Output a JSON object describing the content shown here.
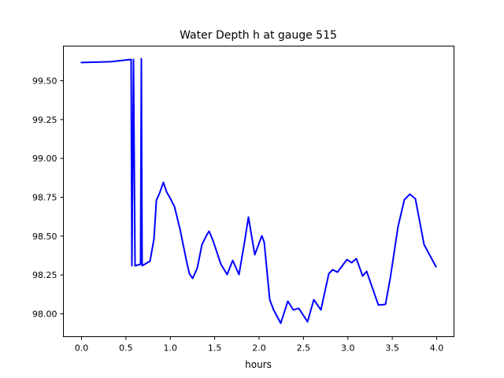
{
  "chart_data": {
    "type": "line",
    "title": "Water Depth h at gauge 515",
    "xlabel": "hours",
    "ylabel": "",
    "xlim": [
      -0.204,
      4.195
    ],
    "ylim": [
      97.853,
      99.723
    ],
    "xticks": [
      0.0,
      0.5,
      1.0,
      1.5,
      2.0,
      2.5,
      3.0,
      3.5,
      4.0
    ],
    "xtick_labels": [
      "0.0",
      "0.5",
      "1.0",
      "1.5",
      "2.0",
      "2.5",
      "3.0",
      "3.5",
      "4.0"
    ],
    "yticks": [
      98.0,
      98.25,
      98.5,
      98.75,
      99.0,
      99.25,
      99.5
    ],
    "ytick_labels": [
      "98.00",
      "98.25",
      "98.50",
      "98.75",
      "99.00",
      "99.25",
      "99.50"
    ],
    "grid": false,
    "series": [
      {
        "name": "h",
        "color": "#0000ff",
        "x": [
          0.0,
          0.328,
          0.559,
          0.568,
          0.585,
          0.603,
          0.665,
          0.674,
          0.683,
          0.772,
          0.816,
          0.843,
          0.878,
          0.922,
          0.958,
          0.993,
          1.047,
          1.109,
          1.18,
          1.215,
          1.251,
          1.304,
          1.357,
          1.41,
          1.437,
          1.481,
          1.57,
          1.641,
          1.703,
          1.774,
          1.836,
          1.88,
          1.951,
          2.031,
          2.058,
          2.12,
          2.164,
          2.244,
          2.324,
          2.386,
          2.448,
          2.545,
          2.616,
          2.696,
          2.785,
          2.829,
          2.882,
          2.989,
          3.042,
          3.095,
          3.166,
          3.211,
          3.344,
          3.423,
          3.477,
          3.565,
          3.636,
          3.698,
          3.76,
          3.858,
          3.991
        ],
        "y": [
          99.617,
          99.622,
          99.637,
          98.309,
          99.637,
          98.309,
          98.319,
          99.642,
          98.309,
          98.339,
          98.481,
          98.73,
          98.775,
          98.846,
          98.785,
          98.75,
          98.689,
          98.547,
          98.345,
          98.258,
          98.228,
          98.294,
          98.446,
          98.507,
          98.532,
          98.471,
          98.319,
          98.253,
          98.344,
          98.253,
          98.461,
          98.623,
          98.38,
          98.502,
          98.461,
          98.091,
          98.025,
          97.939,
          98.081,
          98.025,
          98.035,
          97.949,
          98.091,
          98.025,
          98.258,
          98.284,
          98.268,
          98.349,
          98.329,
          98.355,
          98.243,
          98.273,
          98.056,
          98.061,
          98.228,
          98.562,
          98.735,
          98.77,
          98.74,
          98.446,
          98.304
        ]
      }
    ]
  }
}
